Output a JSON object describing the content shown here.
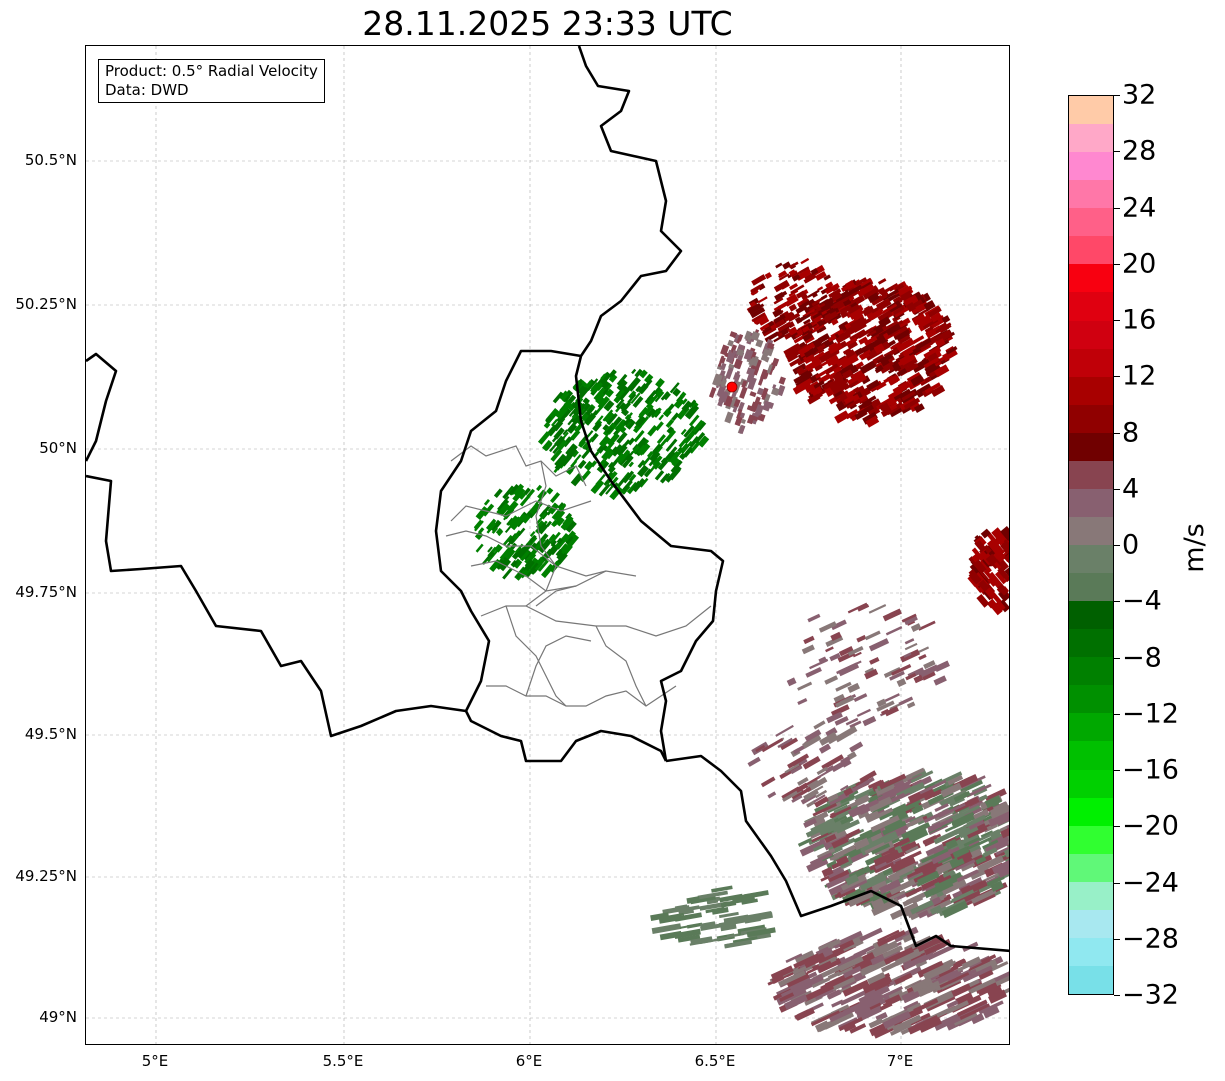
{
  "title": "28.11.2025 23:33 UTC",
  "info_box": {
    "product": "Product: 0.5° Radial Velocity",
    "data": "Data: DWD"
  },
  "axes": {
    "lat_ticks": [
      "50.5°N",
      "50.25°N",
      "50°N",
      "49.75°N",
      "49.5°N",
      "49.25°N",
      "49°N"
    ],
    "lon_ticks": [
      "5°E",
      "5.5°E",
      "6°E",
      "6.5°E",
      "7°E"
    ]
  },
  "colorbar": {
    "label": "m/s",
    "ticks": [
      "32",
      "28",
      "24",
      "20",
      "16",
      "12",
      "8",
      "4",
      "0",
      "−4",
      "−8",
      "−12",
      "−16",
      "−20",
      "−24",
      "−28",
      "−32"
    ],
    "range": [
      -32,
      32
    ],
    "step": 2,
    "colors_top_to_bottom": [
      "#ffcba8",
      "#ffa8c8",
      "#ff88d0",
      "#ff77a8",
      "#ff6088",
      "#ff4868",
      "#f80010",
      "#e00010",
      "#d00010",
      "#c00008",
      "#a80000",
      "#900000",
      "#700000",
      "#884450",
      "#886070",
      "#887878",
      "#6a8068",
      "#5a7a58",
      "#006000",
      "#007000",
      "#008000",
      "#009000",
      "#00a800",
      "#00c000",
      "#00d000",
      "#00f000",
      "#30ff30",
      "#60f878",
      "#98f0c8",
      "#a8e8f0",
      "#90e8f0",
      "#78e0e8"
    ]
  },
  "radar_site_color": "#ff0000"
}
